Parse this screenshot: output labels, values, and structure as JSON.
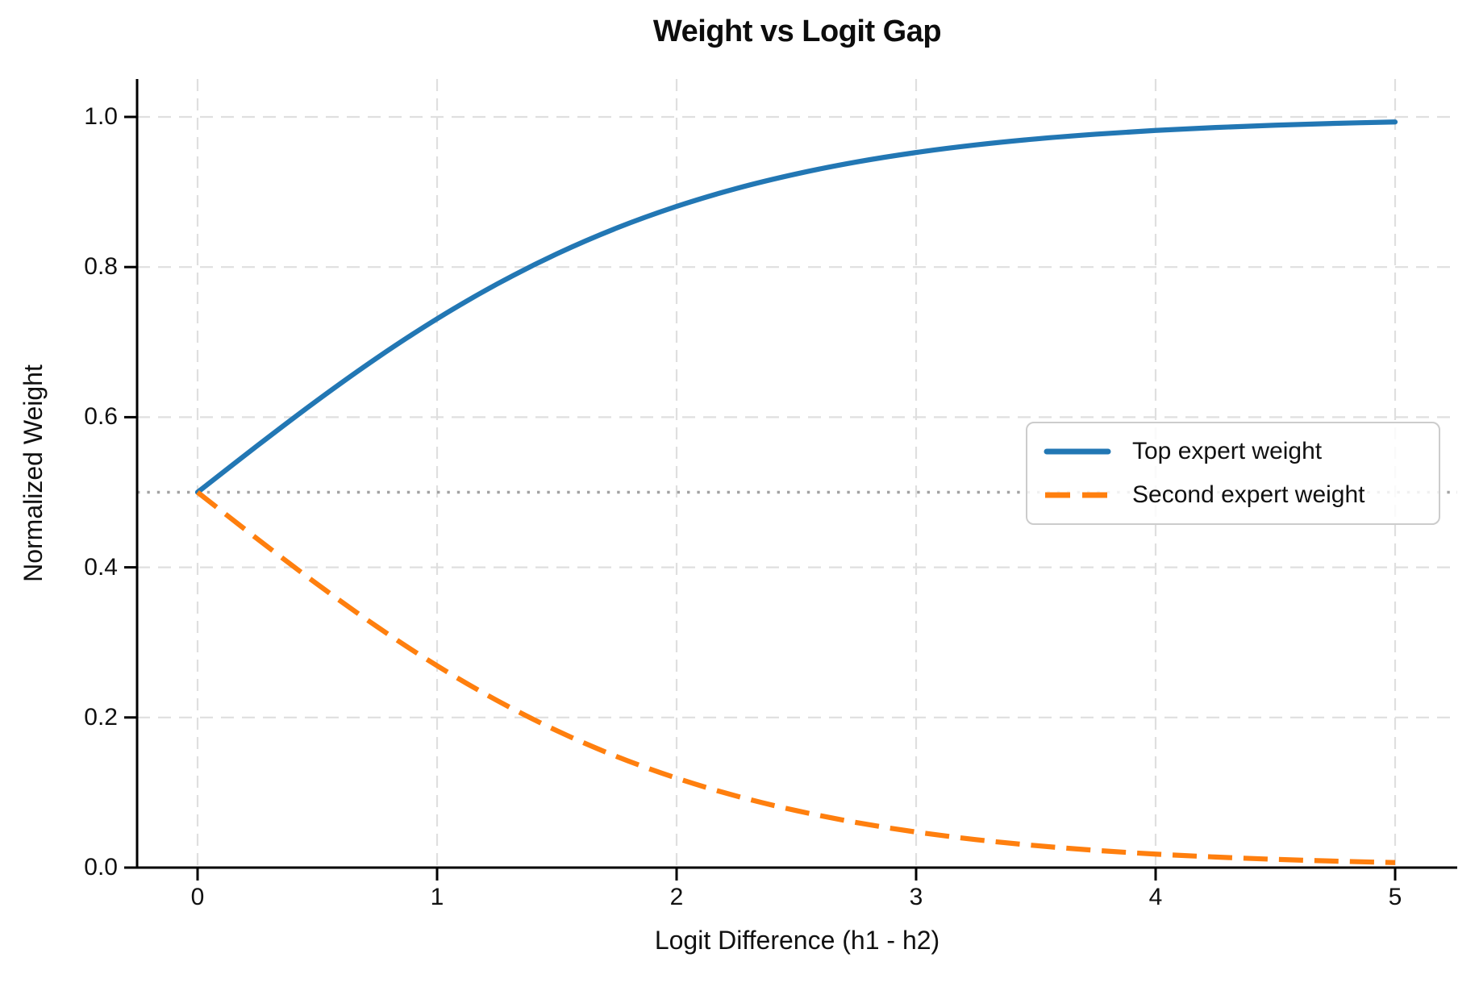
{
  "chart_data": {
    "type": "line",
    "title": "Weight vs Logit Gap",
    "xlabel": "Logit Difference (h1 - h2)",
    "ylabel": "Normalized Weight",
    "xlim": [
      -0.25,
      5.25
    ],
    "ylim": [
      0.0,
      1.05
    ],
    "grid": "dashed light-gray on both axes",
    "legend_position": "center right",
    "x_ticks": [
      0,
      1,
      2,
      3,
      4,
      5
    ],
    "x_tick_labels": [
      "0",
      "1",
      "2",
      "3",
      "4",
      "5"
    ],
    "y_ticks": [
      0.0,
      0.2,
      0.4,
      0.6,
      0.8,
      1.0
    ],
    "y_tick_labels": [
      "0.0",
      "0.2",
      "0.4",
      "0.6",
      "0.8",
      "1.0"
    ],
    "x": [
      0,
      0.25,
      0.5,
      0.75,
      1.0,
      1.25,
      1.5,
      1.75,
      2.0,
      2.25,
      2.5,
      2.75,
      3.0,
      3.25,
      3.5,
      3.75,
      4.0,
      4.25,
      4.5,
      4.75,
      5.0
    ],
    "series": [
      {
        "name": "Top expert weight",
        "color": "#2277b4",
        "style": "solid",
        "values": [
          0.5,
          0.5622,
          0.6225,
          0.6792,
          0.7311,
          0.7773,
          0.8176,
          0.852,
          0.8808,
          0.9047,
          0.9241,
          0.9399,
          0.9526,
          0.9627,
          0.9707,
          0.977,
          0.982,
          0.9859,
          0.989,
          0.9914,
          0.9933
        ]
      },
      {
        "name": "Second expert weight",
        "color": "#ff7f0e",
        "style": "dashed",
        "values": [
          0.5,
          0.4378,
          0.3775,
          0.3208,
          0.2689,
          0.2227,
          0.1824,
          0.148,
          0.1192,
          0.0953,
          0.0759,
          0.0601,
          0.0474,
          0.0373,
          0.0293,
          0.023,
          0.018,
          0.0141,
          0.011,
          0.0086,
          0.0067
        ]
      }
    ],
    "reference_line": {
      "y": 0.5,
      "color": "#a3a3a3",
      "style": "dotted"
    },
    "grid_color": "#dfdfdf",
    "spine_color": "#000000"
  }
}
